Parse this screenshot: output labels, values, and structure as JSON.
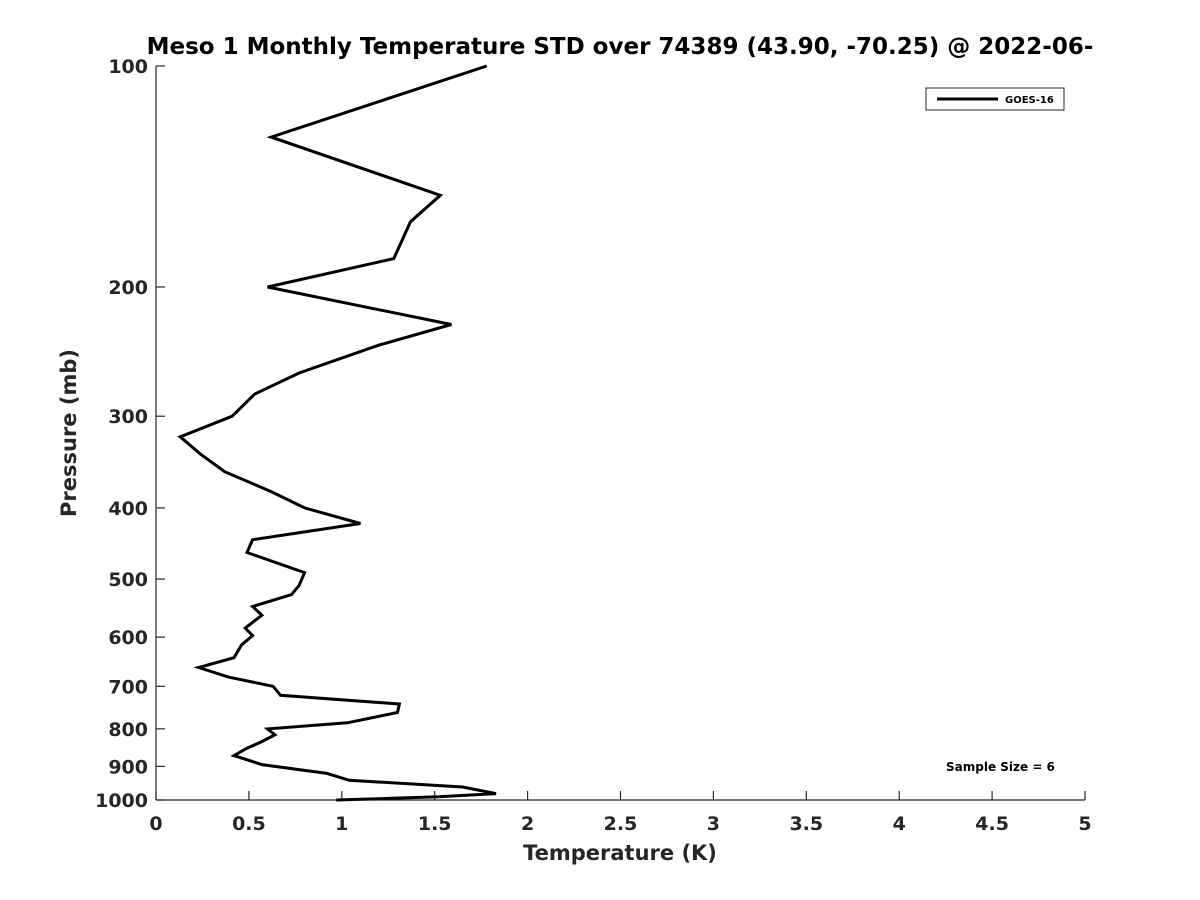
{
  "chart_data": {
    "type": "line",
    "title": "Meso 1 Monthly Temperature STD over 74389 (43.90, -70.25) @ 2022-06-",
    "xlabel": "Temperature (K)",
    "ylabel": "Pressure (mb)",
    "xlim": [
      0,
      5
    ],
    "ylim": [
      1000,
      100
    ],
    "y_scale": "log",
    "y_reversed": true,
    "x_ticks": [
      "0",
      "0.5",
      "1",
      "1.5",
      "2",
      "2.5",
      "3",
      "3.5",
      "4",
      "4.5",
      "5"
    ],
    "y_ticks": [
      "100",
      "200",
      "300",
      "400",
      "500",
      "600",
      "700",
      "800",
      "900",
      "1000"
    ],
    "grid": false,
    "legend": {
      "position": "top-right",
      "entries": [
        "GOES-16"
      ]
    },
    "annotation": "Sample Size = 6",
    "series": [
      {
        "name": "GOES-16",
        "color": "#000000",
        "points": [
          [
            1.78,
            100
          ],
          [
            0.62,
            125
          ],
          [
            1.53,
            150
          ],
          [
            1.37,
            163
          ],
          [
            1.28,
            183
          ],
          [
            0.6,
            200
          ],
          [
            1.59,
            225
          ],
          [
            1.2,
            240
          ],
          [
            0.77,
            262
          ],
          [
            0.53,
            280
          ],
          [
            0.41,
            300
          ],
          [
            0.13,
            320
          ],
          [
            0.24,
            338
          ],
          [
            0.37,
            357
          ],
          [
            0.62,
            380
          ],
          [
            0.8,
            400
          ],
          [
            1.1,
            420
          ],
          [
            0.52,
            442
          ],
          [
            0.49,
            460
          ],
          [
            0.8,
            490
          ],
          [
            0.77,
            510
          ],
          [
            0.73,
            525
          ],
          [
            0.52,
            545
          ],
          [
            0.57,
            560
          ],
          [
            0.48,
            583
          ],
          [
            0.52,
            597
          ],
          [
            0.46,
            615
          ],
          [
            0.42,
            640
          ],
          [
            0.23,
            660
          ],
          [
            0.39,
            680
          ],
          [
            0.63,
            700
          ],
          [
            0.67,
            720
          ],
          [
            1.31,
            740
          ],
          [
            1.3,
            760
          ],
          [
            1.03,
            785
          ],
          [
            0.6,
            800
          ],
          [
            0.64,
            815
          ],
          [
            0.56,
            835
          ],
          [
            0.49,
            850
          ],
          [
            0.42,
            870
          ],
          [
            0.57,
            895
          ],
          [
            0.92,
            920
          ],
          [
            1.04,
            940
          ],
          [
            1.65,
            960
          ],
          [
            1.83,
            980
          ],
          [
            1.52,
            990
          ],
          [
            0.97,
            1000
          ]
        ]
      }
    ]
  }
}
